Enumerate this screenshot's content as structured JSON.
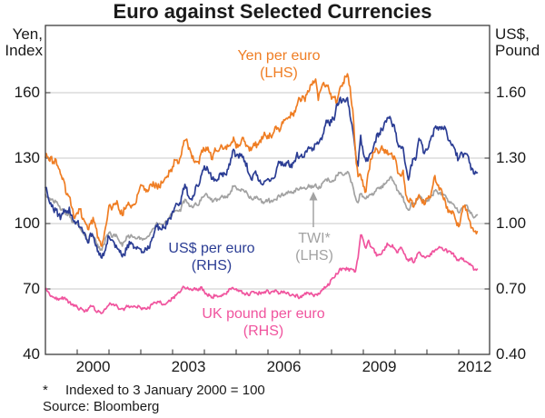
{
  "title": "Euro against Selected Currencies",
  "axes": {
    "left_header_line1": "Yen,",
    "left_header_line2": "Index",
    "right_header_line1": "US$,",
    "right_header_line2": "Pound",
    "left_ticks": [
      160,
      130,
      100,
      70,
      40
    ],
    "right_ticks": [
      "1.60",
      "1.30",
      "1.00",
      "0.70",
      "0.40"
    ],
    "x_ticks": [
      2000,
      2003,
      2006,
      2009,
      2012
    ]
  },
  "footnote": {
    "marker": "*",
    "text": "Indexed to 3 January 2000 = 100",
    "source": "Source: Bloomberg"
  },
  "colors": {
    "yen": "#EF7D23",
    "usd": "#2B3D94",
    "twi": "#A2A2A2",
    "pound": "#F0549E",
    "gridline": "#C9C9C9",
    "axis": "#3D3D3D",
    "text": "#1A1A1A"
  },
  "chart_data": {
    "type": "line",
    "title": "Euro against Selected Currencies",
    "frequency": "monthly",
    "x_start": "1999-01",
    "x_end": "2012-08",
    "x_tick_years": [
      2000,
      2003,
      2006,
      2009,
      2012
    ],
    "left_axis": {
      "label": "Yen, Index",
      "range": [
        40,
        190
      ],
      "gridlines": [
        70,
        100,
        130,
        160
      ]
    },
    "right_axis": {
      "label": "US$, Pound",
      "range": [
        0.4,
        1.9
      ],
      "gridlines": [
        0.7,
        1.0,
        1.3,
        1.6
      ]
    },
    "grid": true,
    "annotation": {
      "text": "TWI*",
      "note": "(LHS)",
      "arrow_to_series": "TWI*"
    },
    "series": [
      {
        "name": "Yen per euro",
        "label_note": "(LHS)",
        "axis": "LHS",
        "color": "#EF7D23",
        "values": [
          131,
          130,
          130,
          128,
          129,
          125,
          122,
          120,
          113,
          112,
          107,
          103,
          105,
          107,
          102,
          100,
          97,
          100,
          102,
          98,
          93,
          90,
          93,
          100,
          108,
          106,
          109,
          110,
          106,
          104,
          107,
          109,
          108,
          109,
          109,
          114,
          117,
          117,
          115,
          116,
          117,
          118,
          117,
          117,
          119,
          121,
          122,
          124,
          126,
          129,
          128,
          130,
          136,
          139,
          134,
          132,
          129,
          128,
          128,
          133,
          134,
          134,
          133,
          129,
          135,
          133,
          135,
          134,
          135,
          136,
          136,
          139,
          135,
          136,
          138,
          138,
          136,
          133,
          135,
          136,
          136,
          138,
          139,
          141,
          140,
          140,
          141,
          144,
          143,
          145,
          147,
          148,
          149,
          150,
          151,
          155,
          157,
          158,
          156,
          161,
          163,
          165,
          167,
          157,
          161,
          165,
          163,
          162,
          157,
          158,
          156,
          161,
          163,
          167,
          169,
          162,
          152,
          133,
          121,
          122,
          117,
          115,
          124,
          130,
          132,
          135,
          133,
          135,
          133,
          133,
          132,
          131,
          130,
          123,
          122,
          125,
          113,
          110,
          111,
          108,
          111,
          113,
          111,
          109,
          111,
          112,
          116,
          122,
          117,
          116,
          113,
          110,
          105,
          106,
          105,
          101,
          98,
          104,
          108,
          107,
          101,
          98,
          96,
          97
        ]
      },
      {
        "name": "US$ per euro",
        "label_note": "(RHS)",
        "axis": "RHS",
        "color": "#2B3D94",
        "values": [
          1.17,
          1.12,
          1.09,
          1.07,
          1.06,
          1.04,
          1.03,
          1.06,
          1.05,
          1.07,
          1.03,
          1.01,
          1.01,
          0.98,
          0.96,
          0.95,
          0.91,
          0.95,
          0.94,
          0.9,
          0.87,
          0.85,
          0.86,
          0.91,
          0.94,
          0.92,
          0.91,
          0.89,
          0.87,
          0.85,
          0.86,
          0.9,
          0.91,
          0.9,
          0.89,
          0.89,
          0.88,
          0.87,
          0.88,
          0.89,
          0.92,
          0.96,
          0.99,
          0.98,
          0.98,
          0.98,
          1.0,
          1.02,
          1.06,
          1.08,
          1.08,
          1.09,
          1.16,
          1.17,
          1.13,
          1.11,
          1.13,
          1.17,
          1.17,
          1.23,
          1.26,
          1.26,
          1.23,
          1.2,
          1.2,
          1.21,
          1.23,
          1.22,
          1.22,
          1.25,
          1.3,
          1.34,
          1.31,
          1.3,
          1.32,
          1.29,
          1.27,
          1.22,
          1.2,
          1.23,
          1.22,
          1.2,
          1.18,
          1.19,
          1.21,
          1.19,
          1.2,
          1.23,
          1.28,
          1.27,
          1.27,
          1.28,
          1.27,
          1.26,
          1.29,
          1.32,
          1.3,
          1.31,
          1.32,
          1.35,
          1.35,
          1.34,
          1.37,
          1.36,
          1.39,
          1.42,
          1.47,
          1.46,
          1.47,
          1.48,
          1.55,
          1.57,
          1.56,
          1.56,
          1.58,
          1.5,
          1.43,
          1.33,
          1.27,
          1.4,
          1.32,
          1.28,
          1.3,
          1.32,
          1.36,
          1.4,
          1.41,
          1.43,
          1.46,
          1.48,
          1.49,
          1.45,
          1.43,
          1.37,
          1.36,
          1.34,
          1.26,
          1.2,
          1.27,
          1.29,
          1.31,
          1.39,
          1.37,
          1.32,
          1.34,
          1.37,
          1.4,
          1.44,
          1.44,
          1.44,
          1.43,
          1.43,
          1.38,
          1.37,
          1.36,
          1.32,
          1.29,
          1.32,
          1.32,
          1.32,
          1.28,
          1.25,
          1.23,
          1.23
        ]
      },
      {
        "name": "TWI*",
        "label_note": "(LHS)",
        "axis": "LHS",
        "color": "#A2A2A2",
        "values": [
          113,
          112,
          111,
          110,
          110,
          108,
          106,
          106,
          104,
          104,
          101,
          100,
          100,
          98,
          96,
          95,
          92,
          94,
          94,
          92,
          89,
          88,
          90,
          94,
          96,
          94,
          95,
          94,
          92,
          90,
          92,
          94,
          94,
          94,
          93,
          94,
          93,
          93,
          93,
          94,
          96,
          98,
          100,
          100,
          100,
          100,
          101,
          103,
          105,
          106,
          106,
          106,
          110,
          111,
          109,
          108,
          108,
          109,
          109,
          112,
          113,
          113,
          112,
          110,
          111,
          111,
          112,
          112,
          112,
          113,
          115,
          117,
          116,
          115,
          116,
          115,
          114,
          112,
          111,
          112,
          112,
          111,
          110,
          110,
          111,
          110,
          110,
          111,
          113,
          113,
          113,
          114,
          114,
          114,
          115,
          116,
          116,
          116,
          116,
          117,
          117,
          117,
          118,
          116,
          117,
          119,
          120,
          120,
          119,
          120,
          122,
          123,
          123,
          123,
          124,
          121,
          117,
          112,
          110,
          114,
          112,
          111,
          113,
          113,
          114,
          116,
          116,
          117,
          118,
          120,
          121,
          120,
          118,
          115,
          114,
          112,
          108,
          106,
          109,
          109,
          110,
          113,
          112,
          110,
          110,
          111,
          113,
          115,
          114,
          114,
          113,
          113,
          110,
          110,
          109,
          107,
          105,
          107,
          108,
          108,
          106,
          104,
          103,
          104
        ]
      },
      {
        "name": "UK pound per euro",
        "label_note": "(RHS)",
        "axis": "RHS",
        "color": "#F0549E",
        "values": [
          0.7,
          0.69,
          0.67,
          0.665,
          0.66,
          0.65,
          0.655,
          0.66,
          0.65,
          0.64,
          0.63,
          0.625,
          0.615,
          0.61,
          0.605,
          0.6,
          0.6,
          0.625,
          0.62,
          0.6,
          0.6,
          0.59,
          0.6,
          0.615,
          0.63,
          0.63,
          0.625,
          0.62,
          0.61,
          0.61,
          0.61,
          0.62,
          0.62,
          0.62,
          0.62,
          0.62,
          0.61,
          0.61,
          0.61,
          0.61,
          0.63,
          0.64,
          0.635,
          0.64,
          0.63,
          0.63,
          0.64,
          0.645,
          0.655,
          0.67,
          0.68,
          0.69,
          0.71,
          0.7,
          0.7,
          0.7,
          0.7,
          0.7,
          0.7,
          0.705,
          0.69,
          0.67,
          0.67,
          0.66,
          0.67,
          0.66,
          0.665,
          0.67,
          0.68,
          0.69,
          0.7,
          0.7,
          0.7,
          0.69,
          0.69,
          0.68,
          0.68,
          0.67,
          0.69,
          0.68,
          0.68,
          0.68,
          0.68,
          0.685,
          0.69,
          0.68,
          0.69,
          0.695,
          0.68,
          0.69,
          0.69,
          0.68,
          0.675,
          0.67,
          0.67,
          0.672,
          0.66,
          0.67,
          0.68,
          0.68,
          0.68,
          0.67,
          0.674,
          0.68,
          0.69,
          0.7,
          0.71,
          0.72,
          0.745,
          0.752,
          0.77,
          0.79,
          0.79,
          0.79,
          0.79,
          0.79,
          0.79,
          0.78,
          0.84,
          0.95,
          0.92,
          0.89,
          0.92,
          0.89,
          0.88,
          0.85,
          0.86,
          0.865,
          0.88,
          0.91,
          0.9,
          0.9,
          0.88,
          0.87,
          0.89,
          0.87,
          0.85,
          0.83,
          0.84,
          0.82,
          0.845,
          0.87,
          0.855,
          0.85,
          0.85,
          0.85,
          0.87,
          0.88,
          0.88,
          0.89,
          0.88,
          0.88,
          0.87,
          0.87,
          0.86,
          0.84,
          0.83,
          0.84,
          0.83,
          0.82,
          0.81,
          0.805,
          0.785,
          0.79
        ]
      }
    ]
  }
}
